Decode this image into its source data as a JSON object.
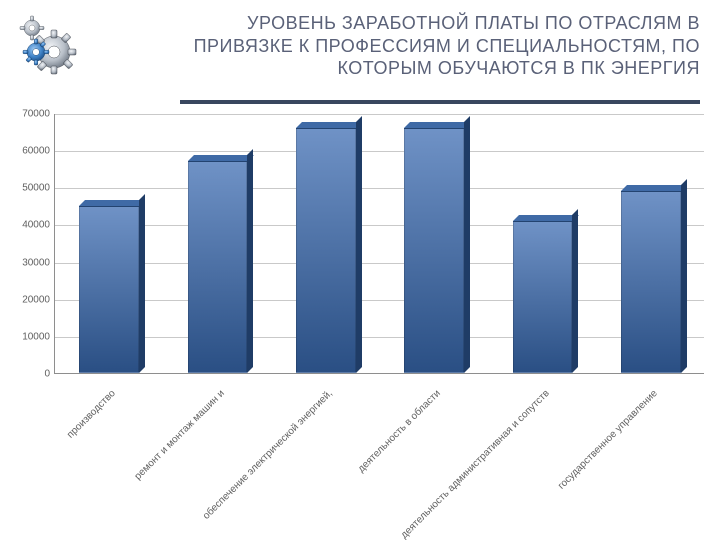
{
  "header": {
    "title": "УРОВЕНЬ ЗАРАБОТНОЙ ПЛАТЫ ПО ОТРАСЛЯМ В ПРИВЯЗКЕ К ПРОФЕССИЯМ И СПЕЦИАЛЬНОСТЯМ, ПО КОТОРЫМ ОБУЧАЮТСЯ В ПК ЭНЕРГИЯ",
    "title_color": "#5a6178",
    "title_fontsize": 18,
    "rule_color": "#39475f"
  },
  "chart": {
    "type": "bar",
    "ylim": [
      0,
      70000
    ],
    "ytick_step": 10000,
    "yticks": [
      0,
      10000,
      20000,
      30000,
      40000,
      50000,
      60000,
      70000
    ],
    "axis_label_fontsize": 10,
    "axis_label_color": "#5f5f5f",
    "grid_color": "#c9c9c9",
    "axis_color": "#8e8e8e",
    "background_color": "#ffffff",
    "bar_fill_top": "#6f92c6",
    "bar_fill_bottom": "#2a4f84",
    "bar_top_face": "#3f6aa6",
    "bar_side_face": "#1f3c66",
    "bar_width_ratio": 0.55,
    "categories": [
      "производство",
      "ремонт и монтаж машин и",
      "обеспечение электрической энергией,",
      "деятельность в области",
      "деятельность административная и сопутств",
      "государственное управление"
    ],
    "values": [
      45000,
      57000,
      66000,
      66000,
      41000,
      49000
    ]
  }
}
